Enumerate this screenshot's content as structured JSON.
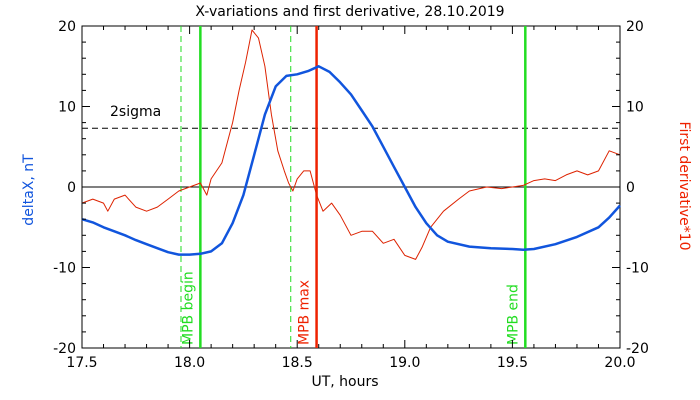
{
  "chart_data": {
    "type": "line",
    "title": "X-variations and first derivative, 28.10.2019",
    "xlabel": "UT, hours",
    "ylabel_left": "deltaX, nT",
    "ylabel_right": "First derivative*10",
    "xlim": [
      17.5,
      20.0
    ],
    "ylim": [
      -20,
      20
    ],
    "x_ticks": [
      "17.5",
      "18.0",
      "18.5",
      "19.0",
      "19.5",
      "20.0"
    ],
    "y_ticks_left": [
      "-20",
      "-10",
      "0",
      "10",
      "20"
    ],
    "y_ticks_right": [
      "-20",
      "-10",
      "0",
      "10",
      "20"
    ],
    "colors": {
      "deltaX": "#1155dd",
      "derivative": "#dd2200",
      "mpb": "#22dd22",
      "mpb_max": "#ee2200",
      "axis": "#000000"
    },
    "series": [
      {
        "name": "deltaX, nT",
        "points": [
          [
            17.5,
            -4.0
          ],
          [
            17.55,
            -4.4
          ],
          [
            17.6,
            -5.0
          ],
          [
            17.65,
            -5.5
          ],
          [
            17.7,
            -6.0
          ],
          [
            17.75,
            -6.6
          ],
          [
            17.8,
            -7.1
          ],
          [
            17.85,
            -7.6
          ],
          [
            17.9,
            -8.1
          ],
          [
            17.95,
            -8.4
          ],
          [
            18.0,
            -8.4
          ],
          [
            18.05,
            -8.3
          ],
          [
            18.1,
            -8.0
          ],
          [
            18.15,
            -7.0
          ],
          [
            18.2,
            -4.5
          ],
          [
            18.25,
            -1.0
          ],
          [
            18.3,
            4.0
          ],
          [
            18.35,
            9.0
          ],
          [
            18.4,
            12.5
          ],
          [
            18.45,
            13.8
          ],
          [
            18.5,
            14.0
          ],
          [
            18.55,
            14.4
          ],
          [
            18.6,
            15.0
          ],
          [
            18.65,
            14.3
          ],
          [
            18.7,
            13.0
          ],
          [
            18.75,
            11.5
          ],
          [
            18.8,
            9.5
          ],
          [
            18.85,
            7.5
          ],
          [
            18.9,
            5.0
          ],
          [
            18.95,
            2.5
          ],
          [
            19.0,
            0.0
          ],
          [
            19.05,
            -2.5
          ],
          [
            19.1,
            -4.5
          ],
          [
            19.15,
            -6.0
          ],
          [
            19.2,
            -6.8
          ],
          [
            19.3,
            -7.4
          ],
          [
            19.4,
            -7.6
          ],
          [
            19.5,
            -7.7
          ],
          [
            19.55,
            -7.8
          ],
          [
            19.6,
            -7.7
          ],
          [
            19.7,
            -7.1
          ],
          [
            19.8,
            -6.2
          ],
          [
            19.9,
            -5.0
          ],
          [
            19.95,
            -3.8
          ],
          [
            20.0,
            -2.3
          ]
        ]
      },
      {
        "name": "First derivative*10",
        "points": [
          [
            17.5,
            -2.0
          ],
          [
            17.55,
            -1.5
          ],
          [
            17.6,
            -2.0
          ],
          [
            17.62,
            -3.0
          ],
          [
            17.65,
            -1.5
          ],
          [
            17.7,
            -1.0
          ],
          [
            17.75,
            -2.5
          ],
          [
            17.8,
            -3.0
          ],
          [
            17.85,
            -2.5
          ],
          [
            17.9,
            -1.5
          ],
          [
            17.95,
            -0.5
          ],
          [
            18.0,
            0.0
          ],
          [
            18.05,
            0.5
          ],
          [
            18.08,
            -1.0
          ],
          [
            18.1,
            1.0
          ],
          [
            18.15,
            3.0
          ],
          [
            18.2,
            8.0
          ],
          [
            18.23,
            12.0
          ],
          [
            18.26,
            15.5
          ],
          [
            18.29,
            19.5
          ],
          [
            18.32,
            18.5
          ],
          [
            18.35,
            15.0
          ],
          [
            18.38,
            9.0
          ],
          [
            18.41,
            4.5
          ],
          [
            18.44,
            2.0
          ],
          [
            18.46,
            0.5
          ],
          [
            18.48,
            -0.5
          ],
          [
            18.5,
            1.0
          ],
          [
            18.53,
            2.0
          ],
          [
            18.56,
            2.0
          ],
          [
            18.59,
            -1.0
          ],
          [
            18.62,
            -3.0
          ],
          [
            18.66,
            -2.0
          ],
          [
            18.7,
            -3.5
          ],
          [
            18.75,
            -6.0
          ],
          [
            18.8,
            -5.5
          ],
          [
            18.85,
            -5.5
          ],
          [
            18.9,
            -7.0
          ],
          [
            18.95,
            -6.5
          ],
          [
            19.0,
            -8.5
          ],
          [
            19.05,
            -9.0
          ],
          [
            19.08,
            -7.5
          ],
          [
            19.12,
            -5.0
          ],
          [
            19.18,
            -3.0
          ],
          [
            19.25,
            -1.5
          ],
          [
            19.3,
            -0.5
          ],
          [
            19.38,
            0.0
          ],
          [
            19.45,
            -0.2
          ],
          [
            19.5,
            0.0
          ],
          [
            19.55,
            0.2
          ],
          [
            19.6,
            0.8
          ],
          [
            19.65,
            1.0
          ],
          [
            19.7,
            0.8
          ],
          [
            19.75,
            1.5
          ],
          [
            19.8,
            2.0
          ],
          [
            19.85,
            1.5
          ],
          [
            19.9,
            2.0
          ],
          [
            19.95,
            4.5
          ],
          [
            20.0,
            4.0
          ]
        ]
      }
    ],
    "hlines": [
      {
        "label": "2sigma",
        "y": 7.3,
        "style": "dashed"
      },
      {
        "y": 0,
        "style": "solid"
      }
    ],
    "vlines": [
      {
        "x": 17.96,
        "style": "dashed",
        "color": "#22dd22"
      },
      {
        "x": 18.05,
        "style": "solid",
        "color": "#22dd22",
        "label": "MPB begin"
      },
      {
        "x": 18.47,
        "style": "dashed",
        "color": "#22dd22"
      },
      {
        "x": 18.59,
        "style": "solid",
        "color": "#ee2200",
        "label": "MPB max"
      },
      {
        "x": 19.56,
        "style": "solid",
        "color": "#22dd22",
        "label": "MPB end"
      }
    ]
  }
}
